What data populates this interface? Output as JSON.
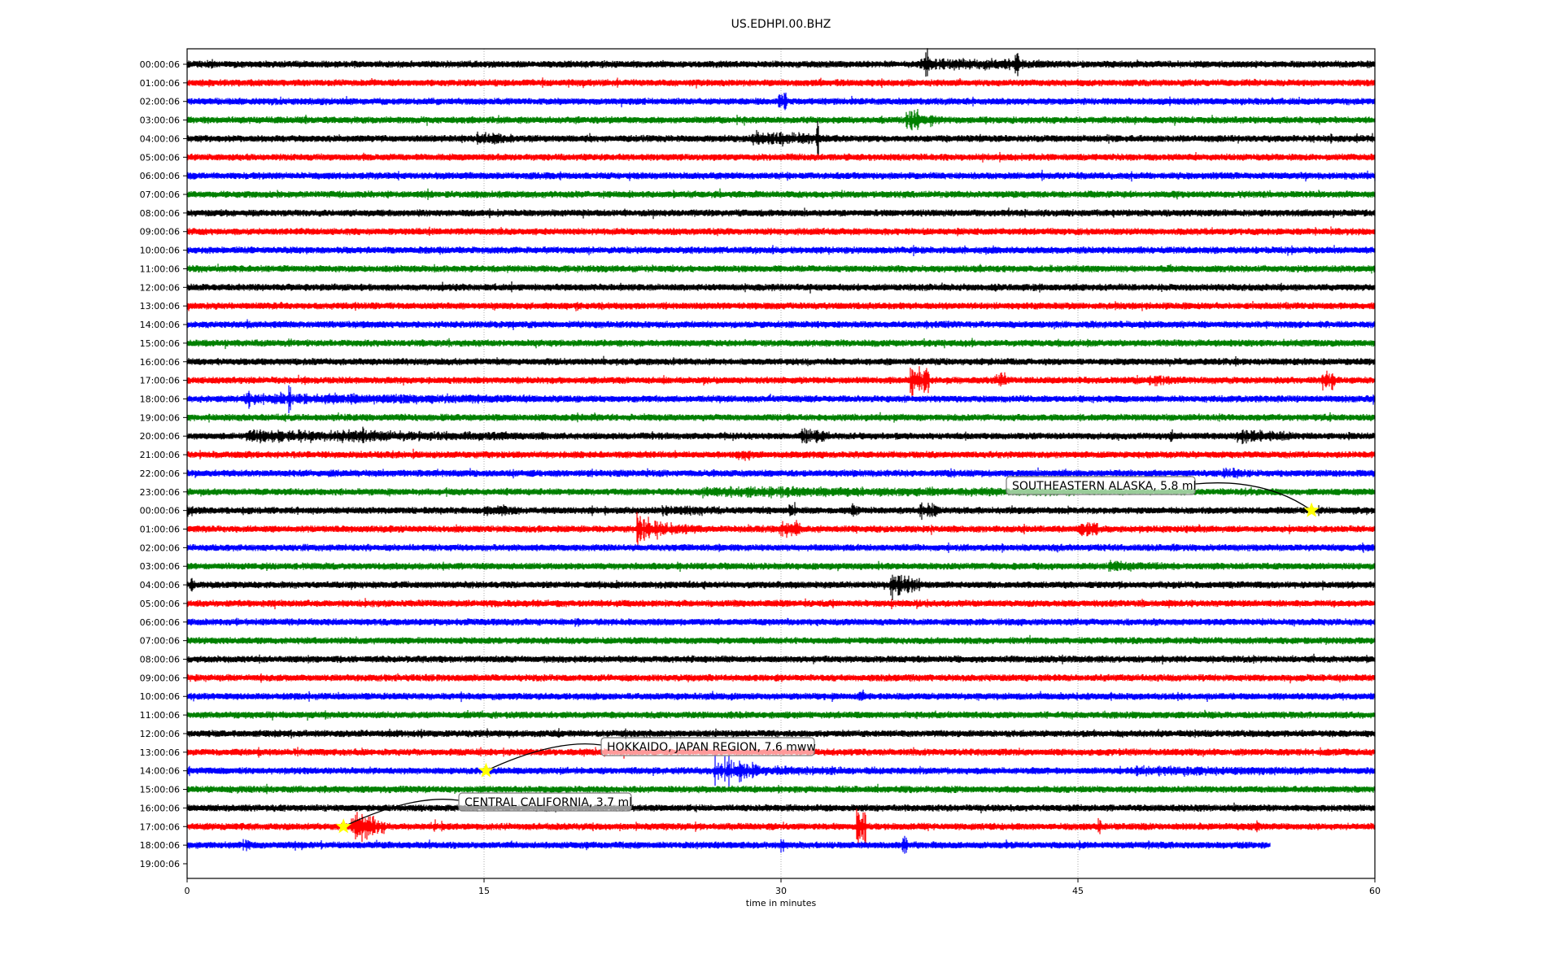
{
  "chart_data": {
    "type": "line",
    "title": "US.EDHPI.00.BHZ",
    "xlabel": "time in minutes",
    "ylabel": "",
    "xlim": [
      0,
      60
    ],
    "x_ticks": [
      "0",
      "15",
      "30",
      "45",
      "60"
    ],
    "grid": "vertical dotted lines at x ticks",
    "trace_colors": [
      "#000000",
      "#ff0000",
      "#0000ff",
      "#008000"
    ],
    "row_labels": [
      "00:00:06",
      "01:00:06",
      "02:00:06",
      "03:00:06",
      "04:00:06",
      "05:00:06",
      "06:00:06",
      "07:00:06",
      "08:00:06",
      "09:00:06",
      "10:00:06",
      "11:00:06",
      "12:00:06",
      "13:00:06",
      "14:00:06",
      "15:00:06",
      "16:00:06",
      "17:00:06",
      "18:00:06",
      "19:00:06",
      "20:00:06",
      "21:00:06",
      "22:00:06",
      "23:00:06",
      "00:00:06",
      "01:00:06",
      "02:00:06",
      "03:00:06",
      "04:00:06",
      "05:00:06",
      "06:00:06",
      "07:00:06",
      "08:00:06",
      "09:00:06",
      "10:00:06",
      "11:00:06",
      "12:00:06",
      "13:00:06",
      "14:00:06",
      "15:00:06",
      "16:00:06",
      "17:00:06",
      "18:00:06",
      "19:00:06"
    ],
    "last_trace_row": 42,
    "last_trace_end_minute": 54.7,
    "signal_bursts": [
      {
        "row": 0,
        "bursts": [
          [
            37.0,
            44.0,
            2.2
          ],
          [
            37.3,
            37.4,
            5
          ],
          [
            40.2,
            40.3,
            5
          ],
          [
            41.8,
            42.0,
            3.5
          ],
          [
            48.0,
            48.1,
            2
          ]
        ]
      },
      {
        "row": 2,
        "bursts": [
          [
            29.8,
            30.3,
            3
          ]
        ]
      },
      {
        "row": 3,
        "bursts": [
          [
            36.3,
            38.0,
            3.5
          ],
          [
            36.8,
            37.0,
            4.5
          ]
        ]
      },
      {
        "row": 4,
        "bursts": [
          [
            14.6,
            16.5,
            2.5
          ],
          [
            15.0,
            15.1,
            4
          ],
          [
            28.5,
            32.5,
            2.5
          ],
          [
            31.8,
            31.9,
            6
          ]
        ]
      },
      {
        "row": 17,
        "bursts": [
          [
            36.5,
            37.5,
            4.5
          ],
          [
            40.8,
            41.4,
            2.5
          ],
          [
            48.5,
            50.5,
            2
          ],
          [
            57.3,
            58.0,
            3
          ]
        ]
      },
      {
        "row": 18,
        "bursts": [
          [
            2.8,
            18.0,
            2
          ],
          [
            5.1,
            5.25,
            9
          ],
          [
            3.1,
            3.2,
            4
          ]
        ]
      },
      {
        "row": 20,
        "bursts": [
          [
            3.0,
            18.0,
            2.2
          ],
          [
            8.8,
            8.95,
            3
          ],
          [
            31.0,
            32.5,
            3
          ],
          [
            49.6,
            49.9,
            2.2
          ],
          [
            53.0,
            56.0,
            2.4
          ]
        ]
      },
      {
        "row": 21,
        "bursts": [
          [
            27.7,
            28.5,
            1.8
          ]
        ]
      },
      {
        "row": 22,
        "bursts": [
          [
            38.4,
            38.8,
            2
          ],
          [
            52.3,
            53.8,
            2
          ]
        ]
      },
      {
        "row": 23,
        "bursts": [
          [
            26.0,
            45.0,
            1.8
          ],
          [
            30.0,
            30.1,
            3.2
          ]
        ]
      },
      {
        "row": 24,
        "bursts": [
          [
            0.0,
            0.3,
            2.5
          ],
          [
            15.0,
            17.0,
            2
          ],
          [
            24.0,
            27.0,
            2
          ],
          [
            30.4,
            30.7,
            2.6
          ],
          [
            33.5,
            34.0,
            2.4
          ],
          [
            37.0,
            38.0,
            3
          ]
        ]
      },
      {
        "row": 25,
        "bursts": [
          [
            22.7,
            24.2,
            5.5
          ],
          [
            24.0,
            26.0,
            2.2
          ],
          [
            30.0,
            31.0,
            2.6
          ],
          [
            45.0,
            46.0,
            2.4
          ],
          [
            42.2,
            42.3,
            2
          ]
        ]
      },
      {
        "row": 27,
        "bursts": [
          [
            46.5,
            49.5,
            1.8
          ]
        ]
      },
      {
        "row": 28,
        "bursts": [
          [
            0.1,
            0.3,
            3
          ],
          [
            35.5,
            37.0,
            4.5
          ]
        ]
      },
      {
        "row": 34,
        "bursts": [
          [
            33.9,
            34.2,
            2
          ]
        ]
      },
      {
        "row": 37,
        "bursts": [
          [
            21.9,
            22.1,
            2
          ]
        ]
      },
      {
        "row": 38,
        "bursts": [
          [
            26.6,
            29.0,
            6
          ],
          [
            29.0,
            35.0,
            1.6
          ],
          [
            48.0,
            57.0,
            1.8
          ]
        ]
      },
      {
        "row": 41,
        "bursts": [
          [
            8.3,
            10.0,
            6
          ],
          [
            12.4,
            12.6,
            2
          ],
          [
            33.8,
            34.3,
            6
          ],
          [
            46.0,
            46.2,
            2.4
          ],
          [
            54.0,
            54.2,
            2
          ]
        ]
      },
      {
        "row": 42,
        "bursts": [
          [
            2.8,
            3.2,
            3
          ],
          [
            30.0,
            30.2,
            2.5
          ],
          [
            36.1,
            36.4,
            3
          ]
        ]
      }
    ],
    "annotations": [
      {
        "text": "SOUTHEASTERN ALASKA, 5.8 ml",
        "row": 24,
        "minute": 56.8,
        "marker": "star",
        "marker_color": "#ffff00"
      },
      {
        "text": "HOKKAIDO, JAPAN REGION, 7.6 mww",
        "row": 38,
        "minute": 15.1,
        "marker": "star",
        "marker_color": "#ffff00"
      },
      {
        "text": "CENTRAL CALIFORNIA, 3.7 ml",
        "row": 41,
        "minute": 7.9,
        "marker": "star",
        "marker_color": "#ffff00"
      }
    ]
  }
}
